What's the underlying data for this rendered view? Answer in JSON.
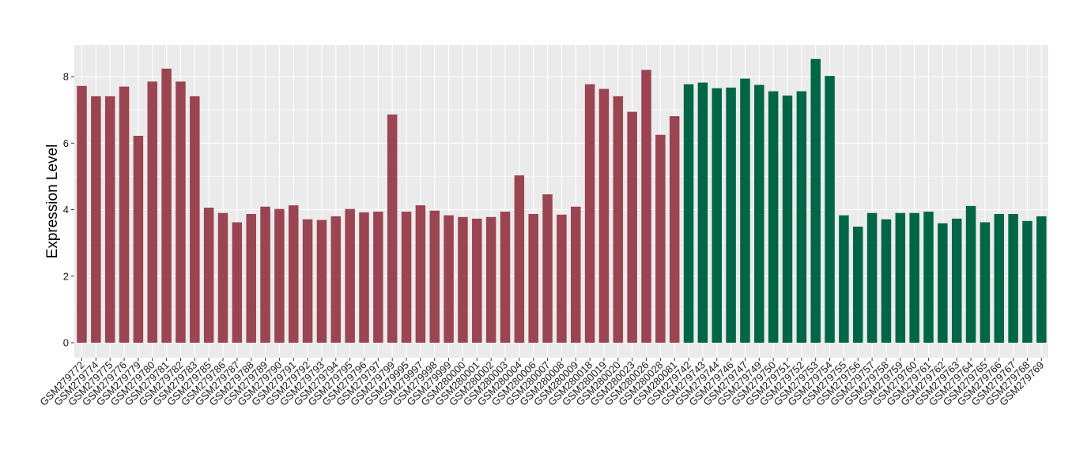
{
  "chart_data": {
    "type": "bar",
    "title": "",
    "xlabel": "",
    "ylabel": "Expression Level",
    "ylim": [
      0,
      9
    ],
    "yticks": [
      0,
      2,
      4,
      6,
      8
    ],
    "grid": true,
    "legend": "none",
    "colors": {
      "group_a": "#9b4452",
      "group_b": "#006646",
      "panel": "#ebebeb",
      "gridline": "#ffffff"
    },
    "categories": [
      "GSM279772",
      "GSM279774",
      "GSM279775",
      "GSM279776",
      "GSM279779",
      "GSM279780",
      "GSM279781",
      "GSM279782",
      "GSM279783",
      "GSM279785",
      "GSM279786",
      "GSM279787",
      "GSM279788",
      "GSM279789",
      "GSM279790",
      "GSM279791",
      "GSM279792",
      "GSM279793",
      "GSM279794",
      "GSM279795",
      "GSM279796",
      "GSM279797",
      "GSM279799",
      "GSM279995",
      "GSM279997",
      "GSM279998",
      "GSM279999",
      "GSM280000",
      "GSM280001",
      "GSM280002",
      "GSM280003",
      "GSM280004",
      "GSM280006",
      "GSM280007",
      "GSM280008",
      "GSM280009",
      "GSM280018",
      "GSM280019",
      "GSM280020",
      "GSM280023",
      "GSM280026",
      "GSM280028",
      "GSM280081",
      "GSM279742",
      "GSM279743",
      "GSM279744",
      "GSM279746",
      "GSM279747",
      "GSM279749",
      "GSM279750",
      "GSM279751",
      "GSM279752",
      "GSM279753",
      "GSM279754",
      "GSM279755",
      "GSM279756",
      "GSM279757",
      "GSM279758",
      "GSM279759",
      "GSM279760",
      "GSM279761",
      "GSM279762",
      "GSM279763",
      "GSM279764",
      "GSM279765",
      "GSM279766",
      "GSM279767",
      "GSM279768",
      "GSM279769"
    ],
    "values": [
      7.72,
      7.41,
      7.41,
      7.7,
      6.22,
      7.85,
      8.24,
      7.85,
      7.41,
      4.06,
      3.9,
      3.62,
      3.87,
      4.09,
      4.02,
      4.13,
      3.71,
      3.69,
      3.8,
      4.02,
      3.92,
      3.94,
      6.86,
      3.94,
      4.13,
      3.97,
      3.83,
      3.78,
      3.73,
      3.78,
      3.94,
      5.03,
      3.87,
      4.46,
      3.85,
      4.09,
      7.77,
      7.63,
      7.41,
      6.94,
      8.2,
      6.25,
      6.81,
      7.77,
      7.82,
      7.65,
      7.67,
      7.94,
      7.75,
      7.56,
      7.43,
      7.56,
      8.53,
      8.02,
      3.83,
      3.49,
      3.9,
      3.71,
      3.9,
      3.9,
      3.94,
      3.59,
      3.73,
      4.11,
      3.62,
      3.87,
      3.87,
      3.66,
      3.8
    ],
    "group": [
      "a",
      "a",
      "a",
      "a",
      "a",
      "a",
      "a",
      "a",
      "a",
      "a",
      "a",
      "a",
      "a",
      "a",
      "a",
      "a",
      "a",
      "a",
      "a",
      "a",
      "a",
      "a",
      "a",
      "a",
      "a",
      "a",
      "a",
      "a",
      "a",
      "a",
      "a",
      "a",
      "a",
      "a",
      "a",
      "a",
      "a",
      "a",
      "a",
      "a",
      "a",
      "a",
      "a",
      "b",
      "b",
      "b",
      "b",
      "b",
      "b",
      "b",
      "b",
      "b",
      "b",
      "b",
      "b",
      "b",
      "b",
      "b",
      "b",
      "b",
      "b",
      "b",
      "b",
      "b",
      "b",
      "b",
      "b",
      "b",
      "b"
    ]
  }
}
